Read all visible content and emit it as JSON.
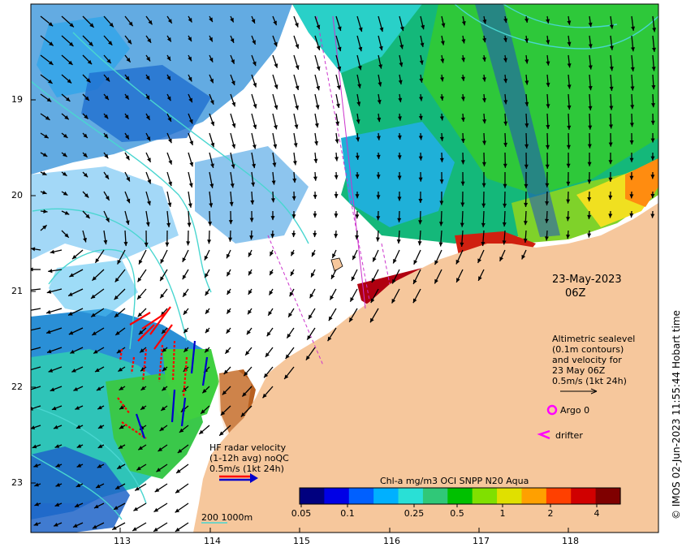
{
  "date": "23-May-2023",
  "time": "06Z",
  "altimetry_note": [
    "Altimetric sealevel",
    "(0.1m contours)",
    "and velocity for",
    "23 May 06Z",
    "0.5m/s (1kt 24h)"
  ],
  "hf_radar_note": [
    "HF radar velocity",
    "(1-12h avg) noQC",
    "0.5m/s (1kt 24h)"
  ],
  "argo_label": "Argo 0",
  "drifter_label": "drifter",
  "colorbar": {
    "title": "Chl-a mg/m3 OCI SNPP N20 Aqua",
    "ticks": [
      "0.05",
      "0.1",
      "0.25",
      "0.5",
      "1",
      "2",
      "4"
    ],
    "colors": [
      "#00007f",
      "#0000e6",
      "#0060ff",
      "#00b0ff",
      "#29e0d6",
      "#30c878",
      "#00c000",
      "#80e000",
      "#e0e000",
      "#ffa000",
      "#ff4000",
      "#d00000",
      "#7f0000"
    ]
  },
  "scale_note": "200  1000m",
  "copyright": "© IMOS 02-Jun-2023 11:55:44 Hobart time",
  "axes": {
    "lat_ticks": [
      "19",
      "20",
      "21",
      "22",
      "23"
    ],
    "lon_ticks": [
      "113",
      "114",
      "115",
      "116",
      "117",
      "118"
    ]
  },
  "colors": {
    "land": "#f6c79c",
    "contour": "#49d6d0",
    "hf_radar": "#ff0000",
    "argo": "#ff00ff",
    "drifter": "#ff00ff"
  }
}
